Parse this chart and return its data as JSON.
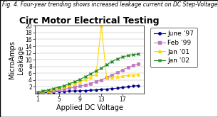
{
  "title": "Circ Motor Electrical Testing",
  "xlabel": "Applied DC Voltage",
  "ylabel": "MicroAmps\nLeakage",
  "caption": "Fig. 4. Four-year trending shows increased leakage current on DC Step-Voltage testing.",
  "xlim": [
    0.5,
    21
  ],
  "ylim": [
    0,
    20
  ],
  "xticks": [
    1,
    5,
    9,
    13,
    17
  ],
  "yticks": [
    2,
    4,
    6,
    8,
    10,
    12,
    14,
    16,
    18,
    20
  ],
  "x": [
    1,
    2,
    3,
    4,
    5,
    6,
    7,
    8,
    9,
    10,
    11,
    12,
    13,
    14,
    15,
    16,
    17,
    18,
    19,
    20
  ],
  "june97": [
    0.2,
    0.3,
    0.4,
    0.5,
    0.6,
    0.7,
    0.75,
    0.8,
    0.85,
    0.9,
    1.0,
    1.1,
    1.2,
    1.3,
    1.5,
    1.6,
    1.8,
    2.0,
    2.2,
    2.4
  ],
  "feb99": [
    0.3,
    0.5,
    0.7,
    0.9,
    1.1,
    1.3,
    1.6,
    1.9,
    2.2,
    2.6,
    3.0,
    3.5,
    4.0,
    4.8,
    5.5,
    6.2,
    7.0,
    7.7,
    8.3,
    8.8
  ],
  "jan01": [
    0.4,
    0.6,
    0.9,
    1.2,
    1.6,
    2.0,
    2.5,
    3.0,
    3.6,
    4.2,
    4.9,
    5.6,
    20.0,
    4.5,
    4.8,
    5.0,
    5.2,
    5.4,
    5.5,
    5.6
  ],
  "jan02": [
    0.5,
    0.8,
    1.1,
    1.5,
    1.9,
    2.4,
    2.9,
    3.5,
    4.2,
    5.0,
    5.8,
    6.7,
    7.5,
    8.5,
    9.5,
    10.2,
    10.8,
    11.2,
    11.5,
    11.7
  ],
  "june97_color": "#00008B",
  "feb99_color": "#C078C0",
  "jan01_color": "#FFD700",
  "jan02_color": "#228B22",
  "background_color": "#FFFFFF",
  "legend_labels": [
    "June ’97",
    "Feb ’99",
    "Jan ’01",
    "Jan ’02"
  ],
  "caption_fontsize": 5.5,
  "title_fontsize": 9,
  "label_fontsize": 7,
  "tick_fontsize": 5.5,
  "legend_fontsize": 6.5
}
